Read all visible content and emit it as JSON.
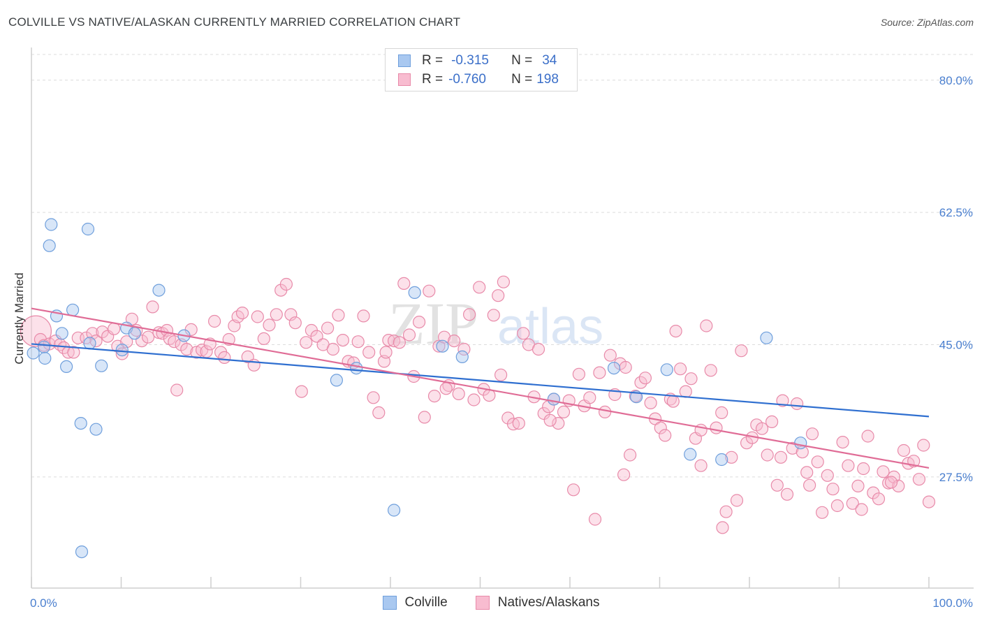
{
  "title": "COLVILLE VS NATIVE/ALASKAN CURRENTLY MARRIED CORRELATION CHART",
  "source": "Source: ZipAtlas.com",
  "watermark": {
    "zip": "ZIP",
    "atlas": "atlas"
  },
  "legend": {
    "rows": [
      {
        "r_label": "R =",
        "r_value": "-0.315",
        "n_label": "N =",
        "n_value": "34",
        "color": "#a9c8f0",
        "border": "#6f9fdc"
      },
      {
        "r_label": "R =",
        "r_value": "-0.760",
        "n_label": "N =",
        "n_value": "198",
        "color": "#f8bcd0",
        "border": "#e88aa9"
      }
    ]
  },
  "bottom_legend": [
    {
      "label": "Colville",
      "color": "#a9c8f0",
      "border": "#6f9fdc"
    },
    {
      "label": "Natives/Alaskans",
      "color": "#f8bcd0",
      "border": "#e88aa9"
    }
  ],
  "chart_data": {
    "type": "scatter",
    "ylabel": "Currently Married",
    "xlabel": "",
    "xlim": [
      0,
      100
    ],
    "ylim": [
      12.8,
      83.4
    ],
    "x_tick_labels": [
      "0.0%",
      "100.0%"
    ],
    "y_ticks": [
      27.5,
      45.0,
      62.5,
      80.0
    ],
    "y_tick_labels": [
      "27.5%",
      "45.0%",
      "62.5%",
      "80.0%"
    ],
    "grid": true,
    "series": [
      {
        "name": "Colville",
        "color": "#6f9fdc",
        "fill": "#a9c8f0",
        "trend": {
          "x0": 0,
          "y0": 45.1,
          "x1": 100,
          "y1": 35.5,
          "color": "#2f6fd0"
        },
        "points": [
          [
            0.2,
            43.9
          ],
          [
            1.4,
            44.7
          ],
          [
            1.5,
            43.2
          ],
          [
            2.0,
            58.1
          ],
          [
            2.2,
            60.9
          ],
          [
            2.8,
            48.8
          ],
          [
            3.4,
            46.5
          ],
          [
            3.9,
            42.1
          ],
          [
            4.6,
            49.6
          ],
          [
            5.5,
            34.6
          ],
          [
            5.6,
            17.6
          ],
          [
            6.3,
            60.3
          ],
          [
            6.5,
            45.2
          ],
          [
            7.2,
            33.8
          ],
          [
            7.8,
            42.2
          ],
          [
            10.1,
            44.3
          ],
          [
            10.6,
            47.2
          ],
          [
            11.5,
            46.5
          ],
          [
            14.2,
            52.2
          ],
          [
            17.0,
            46.2
          ],
          [
            34.0,
            40.3
          ],
          [
            36.2,
            41.9
          ],
          [
            40.4,
            23.1
          ],
          [
            42.7,
            51.9
          ],
          [
            45.8,
            44.8
          ],
          [
            48.0,
            43.4
          ],
          [
            58.2,
            37.8
          ],
          [
            64.9,
            41.9
          ],
          [
            67.4,
            38.1
          ],
          [
            70.8,
            41.7
          ],
          [
            73.4,
            30.5
          ],
          [
            76.9,
            29.8
          ],
          [
            81.9,
            45.9
          ],
          [
            85.7,
            32.0
          ]
        ]
      },
      {
        "name": "Natives/Alaskans",
        "color": "#e88aa9",
        "fill": "#f8bcd0",
        "trend": {
          "x0": 0,
          "y0": 49.8,
          "x1": 100,
          "y1": 28.7,
          "color": "#e06c96"
        },
        "points": [
          [
            0.5,
            46.8
          ],
          [
            1.0,
            45.7
          ],
          [
            1.4,
            44.9
          ],
          [
            2.0,
            45.1
          ],
          [
            2.7,
            45.5
          ],
          [
            3.2,
            45.0
          ],
          [
            3.6,
            44.6
          ],
          [
            4.1,
            44.0
          ],
          [
            4.7,
            44.0
          ],
          [
            5.2,
            45.9
          ],
          [
            6.1,
            45.9
          ],
          [
            6.8,
            46.5
          ],
          [
            7.2,
            45.5
          ],
          [
            7.9,
            46.7
          ],
          [
            8.5,
            46.1
          ],
          [
            9.2,
            47.1
          ],
          [
            9.6,
            44.8
          ],
          [
            10.1,
            43.8
          ],
          [
            10.6,
            45.4
          ],
          [
            11.2,
            48.4
          ],
          [
            11.7,
            46.9
          ],
          [
            12.3,
            45.5
          ],
          [
            13.0,
            46.0
          ],
          [
            13.5,
            50.0
          ],
          [
            14.2,
            46.6
          ],
          [
            14.6,
            46.5
          ],
          [
            15.1,
            46.9
          ],
          [
            15.4,
            45.8
          ],
          [
            15.9,
            45.4
          ],
          [
            16.2,
            39.0
          ],
          [
            16.7,
            45.0
          ],
          [
            17.3,
            44.4
          ],
          [
            17.8,
            47.0
          ],
          [
            18.4,
            44.0
          ],
          [
            19.0,
            44.3
          ],
          [
            19.5,
            44.1
          ],
          [
            19.9,
            45.1
          ],
          [
            20.4,
            48.1
          ],
          [
            21.1,
            44.0
          ],
          [
            21.5,
            43.3
          ],
          [
            22.0,
            45.7
          ],
          [
            22.6,
            47.5
          ],
          [
            23.0,
            48.7
          ],
          [
            23.5,
            49.2
          ],
          [
            24.1,
            43.4
          ],
          [
            24.8,
            42.3
          ],
          [
            25.2,
            48.7
          ],
          [
            25.9,
            45.8
          ],
          [
            26.5,
            47.6
          ],
          [
            27.3,
            49.0
          ],
          [
            27.8,
            52.2
          ],
          [
            28.4,
            53.0
          ],
          [
            28.9,
            49.0
          ],
          [
            29.4,
            47.9
          ],
          [
            30.1,
            38.8
          ],
          [
            30.6,
            45.3
          ],
          [
            31.2,
            46.9
          ],
          [
            31.8,
            46.1
          ],
          [
            32.5,
            45.0
          ],
          [
            33.0,
            47.2
          ],
          [
            33.6,
            44.4
          ],
          [
            34.2,
            48.9
          ],
          [
            34.7,
            45.6
          ],
          [
            35.3,
            42.8
          ],
          [
            35.9,
            42.6
          ],
          [
            36.4,
            45.4
          ],
          [
            37.0,
            48.8
          ],
          [
            37.6,
            44.0
          ],
          [
            38.1,
            38.0
          ],
          [
            38.7,
            36.0
          ],
          [
            39.3,
            42.8
          ],
          [
            39.8,
            45.6
          ],
          [
            40.4,
            45.5
          ],
          [
            41.0,
            45.3
          ],
          [
            41.5,
            53.1
          ],
          [
            42.1,
            46.3
          ],
          [
            42.6,
            40.8
          ],
          [
            43.2,
            48.0
          ],
          [
            43.8,
            35.4
          ],
          [
            44.3,
            52.1
          ],
          [
            44.9,
            38.2
          ],
          [
            45.4,
            44.8
          ],
          [
            46.0,
            46.0
          ],
          [
            46.5,
            39.6
          ],
          [
            47.1,
            45.5
          ],
          [
            47.6,
            38.5
          ],
          [
            48.2,
            44.4
          ],
          [
            48.8,
            49.0
          ],
          [
            49.3,
            37.7
          ],
          [
            49.9,
            52.6
          ],
          [
            50.4,
            39.1
          ],
          [
            51.0,
            38.3
          ],
          [
            51.5,
            48.9
          ],
          [
            52.0,
            51.5
          ],
          [
            52.6,
            53.3
          ],
          [
            53.1,
            35.3
          ],
          [
            53.7,
            34.5
          ],
          [
            54.3,
            34.6
          ],
          [
            54.8,
            46.5
          ],
          [
            55.4,
            45.0
          ],
          [
            56.0,
            38.1
          ],
          [
            56.5,
            44.4
          ],
          [
            57.1,
            35.9
          ],
          [
            57.6,
            36.8
          ],
          [
            58.2,
            37.8
          ],
          [
            58.7,
            34.6
          ],
          [
            59.3,
            36.1
          ],
          [
            59.9,
            37.6
          ],
          [
            60.4,
            25.8
          ],
          [
            61.0,
            41.1
          ],
          [
            61.6,
            36.9
          ],
          [
            62.2,
            38.0
          ],
          [
            62.8,
            21.9
          ],
          [
            63.3,
            41.3
          ],
          [
            63.9,
            36.1
          ],
          [
            64.5,
            43.6
          ],
          [
            65.0,
            38.4
          ],
          [
            65.6,
            42.5
          ],
          [
            66.2,
            42.0
          ],
          [
            66.7,
            30.4
          ],
          [
            67.3,
            38.2
          ],
          [
            67.9,
            40.0
          ],
          [
            68.4,
            40.6
          ],
          [
            69.0,
            37.3
          ],
          [
            69.5,
            35.2
          ],
          [
            70.1,
            34.0
          ],
          [
            70.6,
            33.0
          ],
          [
            71.2,
            37.8
          ],
          [
            71.8,
            46.8
          ],
          [
            72.3,
            41.8
          ],
          [
            72.9,
            38.8
          ],
          [
            73.5,
            40.5
          ],
          [
            74.0,
            32.6
          ],
          [
            74.6,
            33.7
          ],
          [
            75.2,
            47.5
          ],
          [
            75.7,
            41.6
          ],
          [
            76.3,
            34.0
          ],
          [
            76.9,
            36.0
          ],
          [
            77.4,
            22.9
          ],
          [
            78.0,
            30.1
          ],
          [
            78.6,
            24.4
          ],
          [
            79.1,
            44.2
          ],
          [
            79.7,
            32.0
          ],
          [
            80.3,
            32.7
          ],
          [
            80.8,
            34.4
          ],
          [
            81.4,
            33.9
          ],
          [
            82.0,
            30.4
          ],
          [
            82.5,
            34.8
          ],
          [
            83.1,
            26.4
          ],
          [
            83.7,
            37.6
          ],
          [
            84.2,
            25.2
          ],
          [
            84.8,
            31.3
          ],
          [
            85.3,
            37.2
          ],
          [
            85.9,
            30.8
          ],
          [
            86.4,
            28.1
          ],
          [
            87.0,
            33.2
          ],
          [
            87.6,
            29.5
          ],
          [
            88.1,
            22.8
          ],
          [
            88.7,
            27.7
          ],
          [
            89.3,
            25.9
          ],
          [
            89.8,
            23.7
          ],
          [
            90.4,
            32.1
          ],
          [
            91.0,
            29.0
          ],
          [
            91.5,
            24.0
          ],
          [
            92.1,
            26.3
          ],
          [
            92.7,
            28.6
          ],
          [
            93.2,
            32.9
          ],
          [
            93.8,
            25.4
          ],
          [
            94.4,
            24.6
          ],
          [
            94.9,
            28.2
          ],
          [
            95.5,
            26.7
          ],
          [
            96.1,
            27.5
          ],
          [
            96.6,
            26.3
          ],
          [
            97.2,
            31.0
          ],
          [
            97.7,
            29.3
          ],
          [
            98.3,
            29.6
          ],
          [
            98.9,
            27.2
          ],
          [
            99.4,
            31.7
          ],
          [
            100.0,
            24.2
          ],
          [
            52.3,
            41.0
          ],
          [
            57.8,
            35.0
          ],
          [
            66.0,
            27.8
          ],
          [
            71.5,
            37.5
          ],
          [
            77.0,
            20.8
          ],
          [
            86.7,
            26.4
          ],
          [
            92.5,
            23.2
          ],
          [
            95.8,
            26.8
          ],
          [
            83.5,
            30.1
          ],
          [
            74.6,
            29.0
          ],
          [
            46.2,
            39.2
          ],
          [
            39.5,
            44.0
          ]
        ]
      }
    ]
  }
}
